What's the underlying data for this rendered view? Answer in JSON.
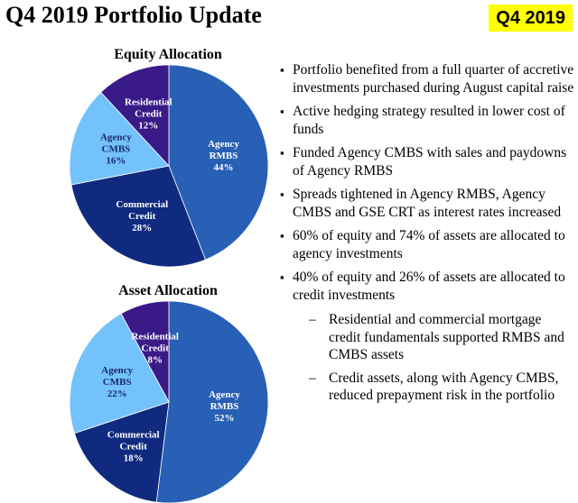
{
  "header": {
    "title": "Q4 2019 Portfolio Update",
    "badge": "Q4 2019"
  },
  "colors": {
    "agency_rmbs": "#2760b4",
    "commercial_credit": "#0f2a7f",
    "agency_cmbs": "#73c2fb",
    "residential_credit": "#3a1a87",
    "badge": "#ffff00"
  },
  "chart_data": [
    {
      "type": "pie",
      "title": "Equity Allocation",
      "slices": [
        {
          "name": "Agency RMBS",
          "label_lines": [
            "Agency",
            "RMBS"
          ],
          "value": 44,
          "value_label": "44%",
          "color": "#2760b4",
          "text_color": "#ffffff"
        },
        {
          "name": "Commercial Credit",
          "label_lines": [
            "Commercial",
            "Credit"
          ],
          "value": 28,
          "value_label": "28%",
          "color": "#0f2a7f",
          "text_color": "#ffffff"
        },
        {
          "name": "Agency CMBS",
          "label_lines": [
            "Agency",
            "CMBS"
          ],
          "value": 16,
          "value_label": "16%",
          "color": "#73c2fb",
          "text_color": "#1a2a6c"
        },
        {
          "name": "Residential Credit",
          "label_lines": [
            "Residential",
            "Credit"
          ],
          "value": 12,
          "value_label": "12%",
          "color": "#3a1a87",
          "text_color": "#ffffff"
        }
      ]
    },
    {
      "type": "pie",
      "title": "Asset Allocation",
      "slices": [
        {
          "name": "Agency RMBS",
          "label_lines": [
            "Agency",
            "RMBS"
          ],
          "value": 52,
          "value_label": "52%",
          "color": "#2760b4",
          "text_color": "#ffffff"
        },
        {
          "name": "Commercial Credit",
          "label_lines": [
            "Commercial",
            "Credit"
          ],
          "value": 18,
          "value_label": "18%",
          "color": "#0f2a7f",
          "text_color": "#ffffff"
        },
        {
          "name": "Agency CMBS",
          "label_lines": [
            "Agency",
            "CMBS"
          ],
          "value": 22,
          "value_label": "22%",
          "color": "#73c2fb",
          "text_color": "#1a2a6c"
        },
        {
          "name": "Residential Credit",
          "label_lines": [
            "Residential",
            "Credit"
          ],
          "value": 8,
          "value_label": "8%",
          "color": "#3a1a87",
          "text_color": "#ffffff"
        }
      ]
    }
  ],
  "bullets": [
    "Portfolio benefited from a full quarter of accretive investments purchased during August capital raise",
    "Active hedging strategy resulted in lower cost of funds",
    "Funded Agency CMBS with sales and paydowns of Agency RMBS",
    "Spreads tightened in Agency RMBS, Agency CMBS and GSE CRT as interest rates increased",
    "60% of equity and 74% of assets are allocated to agency investments",
    "40% of equity and 26% of assets are allocated to credit investments"
  ],
  "sub_bullets": [
    "Residential and commercial mortgage credit fundamentals supported RMBS and CMBS assets",
    "Credit assets, along with Agency CMBS, reduced prepayment risk in the portfolio"
  ]
}
